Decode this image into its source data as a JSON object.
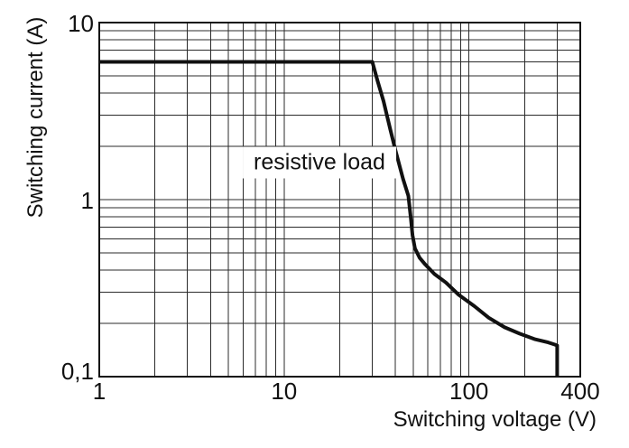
{
  "chart_data": {
    "type": "line",
    "title": "",
    "xlabel": "Switching voltage (V)",
    "ylabel": "Switching current (A)",
    "x_scale": "log",
    "y_scale": "log",
    "xlim": [
      1,
      400
    ],
    "ylim": [
      0.1,
      10
    ],
    "grid": true,
    "legend": "none",
    "x_ticks": [
      {
        "value": 1,
        "label": "1"
      },
      {
        "value": 10,
        "label": "10"
      },
      {
        "value": 100,
        "label": "100"
      },
      {
        "value": 400,
        "label": "400"
      }
    ],
    "y_ticks": [
      {
        "value": 10,
        "label": "10"
      },
      {
        "value": 1,
        "label": "1"
      },
      {
        "value": 0.1,
        "label": "0,1"
      }
    ],
    "x_major_gridlines": [
      10,
      100
    ],
    "y_major_gridlines": [
      1
    ],
    "x_minor_gridlines": [
      2,
      3,
      4,
      5,
      6,
      7,
      8,
      9,
      20,
      30,
      40,
      50,
      60,
      70,
      80,
      90,
      200,
      300
    ],
    "y_minor_gridlines": [
      0.2,
      0.3,
      0.4,
      0.5,
      0.6,
      0.7,
      0.8,
      0.9,
      2,
      3,
      4,
      5,
      6,
      7,
      8,
      9
    ],
    "annotation": {
      "text": "resistive load",
      "x": 15.5,
      "y": 1.62
    },
    "series": [
      {
        "name": "resistive load",
        "color": "#111111",
        "points": [
          [
            1,
            6
          ],
          [
            30,
            6
          ],
          [
            32,
            4.7
          ],
          [
            34.5,
            3.6
          ],
          [
            37.5,
            2.5
          ],
          [
            40,
            1.9
          ],
          [
            44,
            1.31
          ],
          [
            47,
            1.05
          ],
          [
            48.5,
            0.78
          ],
          [
            49.5,
            0.63
          ],
          [
            51,
            0.53
          ],
          [
            54,
            0.47
          ],
          [
            58,
            0.43
          ],
          [
            65,
            0.38
          ],
          [
            75,
            0.34
          ],
          [
            88,
            0.29
          ],
          [
            107,
            0.25
          ],
          [
            128,
            0.215
          ],
          [
            156,
            0.19
          ],
          [
            188,
            0.175
          ],
          [
            226,
            0.163
          ],
          [
            268,
            0.156
          ],
          [
            290,
            0.152
          ],
          [
            300,
            0.15
          ],
          [
            300,
            0.1
          ]
        ]
      }
    ]
  },
  "colors": {
    "background": "#ffffff",
    "grid": "#2b2b2b",
    "axis": "#111111",
    "curve": "#111111",
    "text": "#111111"
  }
}
